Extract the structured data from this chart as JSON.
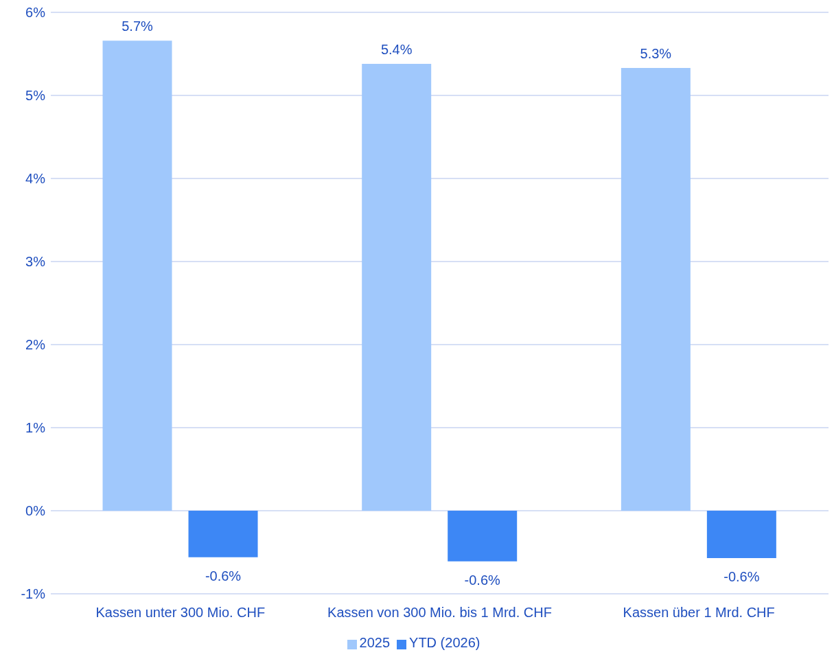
{
  "chart_data": {
    "type": "bar",
    "categories": [
      "Kassen unter 300 Mio. CHF",
      "Kassen von 300 Mio. bis 1 Mrd. CHF",
      "Kassen über 1 Mrd. CHF"
    ],
    "series": [
      {
        "name": "2025",
        "color": "#a0c8fc",
        "values": [
          5.66,
          5.38,
          5.33
        ],
        "value_labels": [
          "5.7%",
          "5.4%",
          "5.3%"
        ]
      },
      {
        "name": "YTD (2026)",
        "color": "#3d87f5",
        "values": [
          -0.56,
          -0.61,
          -0.57
        ],
        "value_labels": [
          "-0.6%",
          "-0.6%",
          "-0.6%"
        ]
      }
    ],
    "ylim": [
      -1,
      6
    ],
    "yticks": [
      {
        "value": -1,
        "label": "-1%"
      },
      {
        "value": 0,
        "label": "0%"
      },
      {
        "value": 1,
        "label": "1%"
      },
      {
        "value": 2,
        "label": "2%"
      },
      {
        "value": 3,
        "label": "3%"
      },
      {
        "value": 4,
        "label": "4%"
      },
      {
        "value": 5,
        "label": "5%"
      },
      {
        "value": 6,
        "label": "6%"
      }
    ],
    "grid": "y",
    "legend": "bottom"
  }
}
